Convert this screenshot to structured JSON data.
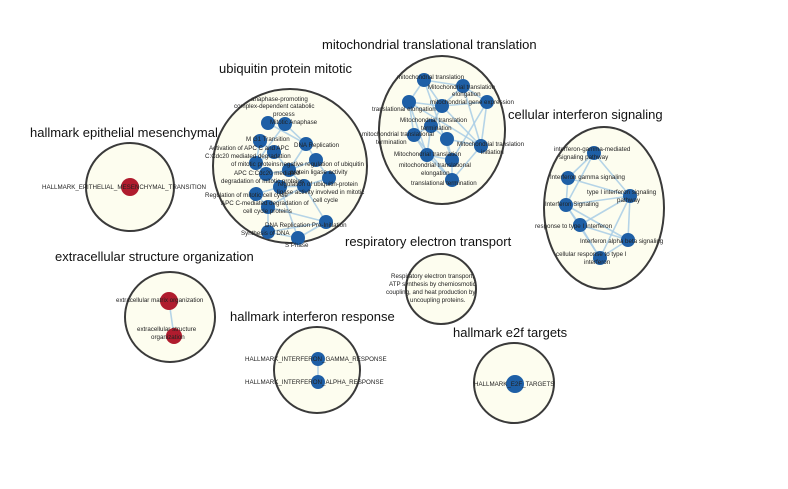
{
  "colors": {
    "node_blue": "#1e5fa6",
    "node_red": "#b01c2e",
    "edge": "#a9cde6",
    "cluster_fill": "#fdfdef"
  },
  "clusters": {
    "epithelial": {
      "title": "hallmark epithelial mesenchymal",
      "labels": [
        "HALLMARK_EPITHELIAL_MESENCHYMAL_TRANSITION"
      ]
    },
    "ubiquitin": {
      "title": "ubiquitin protein mitotic",
      "labels": [
        "anaphase-promoting",
        "complex-dependent catabolic",
        "process",
        "Mitotic Anaphase",
        "M G1 Transition",
        "DNA Replication",
        "Activation of APC C and APC",
        "C:Cdc20 mediated degradation",
        "of mitotic proteins",
        "APC C:Cdc20 mediated",
        "degradation of mitotic proteins",
        "negative regulation of ubiquitin",
        "protein ligase activity",
        "regulation of ubiquitin-protein",
        "ligase activity involved in mitotic",
        "cell cycle",
        "Regulation of mitotic cell cycle",
        "APC C-mediated degradation of",
        "cell cycle proteins",
        "DNA Replication Pre-Initiation",
        "Synthesis of DNA",
        "S Phase"
      ]
    },
    "mitochondrial": {
      "title": "mitochondrial translational translation",
      "labels": [
        "mitochondrial translation",
        "Mitochondrial translation",
        "elongation",
        "mitochondrial gene expression",
        "translational elongation",
        "Mitochondrial translation",
        "termination",
        "mitochondrial translational",
        "termination",
        "Mitochondrial translation",
        "initiation",
        "Mitochondrial translation",
        "mitochondrial translational",
        "elongation",
        "translational termination"
      ]
    },
    "interferon_signaling": {
      "title": "cellular interferon signaling",
      "labels": [
        "interferon-gamma-mediated",
        "signaling pathway",
        "Interferon gamma signaling",
        "type I interferon signaling",
        "pathway",
        "Interferon Signaling",
        "response to type I interferon",
        "Interferon alpha beta signaling",
        "cellular response to type I",
        "interferon"
      ]
    },
    "extracellular": {
      "title": "extracellular structure organization",
      "labels": [
        "extracellular matrix organization",
        "extracellular structure",
        "organization"
      ]
    },
    "respiratory": {
      "title": "respiratory electron transport",
      "labels": [
        "Respiratory electron transport,",
        "ATP synthesis by chemiosmotic",
        "coupling, and heat production by",
        "uncoupling proteins."
      ]
    },
    "interferon_response": {
      "title": "hallmark interferon response",
      "labels": [
        "HALLMARK_INTERFERON_GAMMA_RESPONSE",
        "HALLMARK_INTERFERON_ALPHA_RESPONSE"
      ]
    },
    "e2f": {
      "title": "hallmark e2f targets",
      "labels": [
        "HALLMARK_E2F_TARGETS"
      ]
    }
  }
}
